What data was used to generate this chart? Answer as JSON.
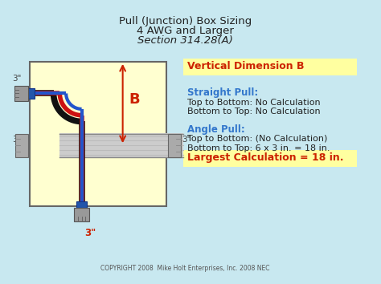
{
  "bg_color": "#c8e8f0",
  "title_line1": "Pull (Junction) Box Sizing",
  "title_line2": "4 AWG and Larger",
  "title_line3": "Section 314.28(A)",
  "box_bg": "#ffffd0",
  "vert_dim_title": "Vertical Dimension B",
  "vert_dim_title_color": "#cc2200",
  "vert_dim_bg": "#ffffa0",
  "straight_pull_label": "Straight Pull:",
  "straight_pull_color": "#3377cc",
  "straight_line1": "Top to Bottom: No Calculation",
  "straight_line2": "Bottom to Top: No Calculation",
  "angle_pull_label": "Angle Pull:",
  "angle_pull_color": "#3377cc",
  "angle_line1": "Top to Bottom: (No Calculation)",
  "angle_line2": "Bottom to Top: 6 x 3 in. = 18 in.",
  "largest_label": "Largest Calculation = 18 in.",
  "largest_color": "#cc2200",
  "largest_bg": "#ffffa0",
  "copyright": "COPYRIGHT 2008  Mike Holt Enterprises, Inc. 2008 NEC",
  "text_color": "#222222",
  "dim_B": "B"
}
